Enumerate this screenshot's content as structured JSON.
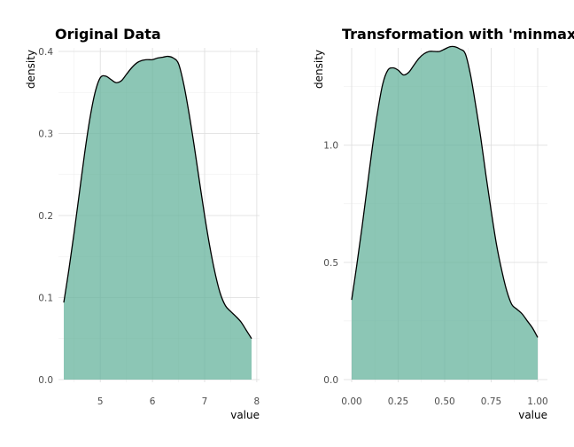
{
  "chart_data": [
    {
      "type": "area",
      "title": "Original Data",
      "xlabel": "value",
      "ylabel": "density",
      "xlim": [
        4.3,
        7.9
      ],
      "ylim": [
        0,
        0.4
      ],
      "xticks": [
        5,
        6,
        7,
        8
      ],
      "yticks": [
        0.0,
        0.1,
        0.2,
        0.3,
        0.4
      ],
      "xtick_labels": [
        "5",
        "6",
        "7",
        "8"
      ],
      "ytick_labels": [
        "0.0",
        "0.1",
        "0.2",
        "0.3",
        "0.4"
      ],
      "grid": true,
      "fill_color": "#66b39c",
      "line_color": "#000000",
      "x": [
        4.3,
        4.4,
        4.5,
        4.6,
        4.7,
        4.8,
        4.9,
        5.0,
        5.1,
        5.2,
        5.3,
        5.4,
        5.5,
        5.6,
        5.7,
        5.8,
        5.9,
        6.0,
        6.1,
        6.2,
        6.3,
        6.4,
        6.5,
        6.6,
        6.7,
        6.8,
        6.9,
        7.0,
        7.1,
        7.2,
        7.3,
        7.4,
        7.5,
        7.6,
        7.7,
        7.8,
        7.9
      ],
      "y": [
        0.094,
        0.135,
        0.18,
        0.228,
        0.276,
        0.318,
        0.35,
        0.368,
        0.37,
        0.366,
        0.362,
        0.364,
        0.372,
        0.38,
        0.386,
        0.389,
        0.39,
        0.39,
        0.392,
        0.393,
        0.394,
        0.392,
        0.385,
        0.36,
        0.325,
        0.285,
        0.242,
        0.2,
        0.162,
        0.13,
        0.105,
        0.09,
        0.083,
        0.077,
        0.07,
        0.06,
        0.05
      ]
    },
    {
      "type": "area",
      "title": "Transformation with 'minmax'",
      "xlabel": "value",
      "ylabel": "density",
      "xlim": [
        0,
        1
      ],
      "ylim": [
        0,
        1.4
      ],
      "xticks": [
        0.0,
        0.25,
        0.5,
        0.75,
        1.0
      ],
      "yticks": [
        0.0,
        0.5,
        1.0
      ],
      "xtick_labels": [
        "0.00",
        "0.25",
        "0.50",
        "0.75",
        "1.00"
      ],
      "ytick_labels": [
        "0.0",
        "0.5",
        "1.0"
      ],
      "grid": true,
      "fill_color": "#66b39c",
      "line_color": "#000000",
      "x": [
        0.0,
        0.0278,
        0.0556,
        0.0833,
        0.1111,
        0.1389,
        0.1667,
        0.1944,
        0.2222,
        0.25,
        0.2778,
        0.3056,
        0.3333,
        0.3611,
        0.3889,
        0.4167,
        0.4444,
        0.4722,
        0.5,
        0.5278,
        0.5556,
        0.5833,
        0.6111,
        0.6389,
        0.6667,
        0.6944,
        0.7222,
        0.75,
        0.7778,
        0.8056,
        0.8333,
        0.8611,
        0.8889,
        0.9167,
        0.9444,
        0.9722,
        1.0
      ],
      "y": [
        0.34,
        0.49,
        0.65,
        0.82,
        0.99,
        1.14,
        1.26,
        1.32,
        1.33,
        1.32,
        1.3,
        1.31,
        1.34,
        1.37,
        1.39,
        1.4,
        1.4,
        1.4,
        1.41,
        1.42,
        1.42,
        1.41,
        1.39,
        1.3,
        1.17,
        1.03,
        0.87,
        0.72,
        0.58,
        0.47,
        0.38,
        0.32,
        0.3,
        0.28,
        0.25,
        0.22,
        0.18
      ]
    }
  ]
}
